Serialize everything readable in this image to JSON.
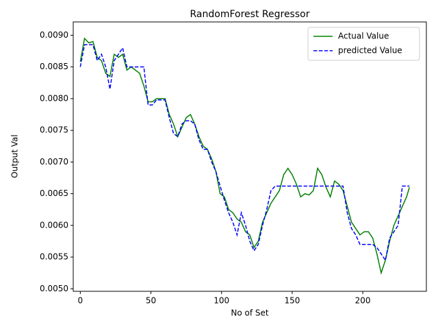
{
  "chart_data": {
    "type": "line",
    "title": "RandomForest Regressor",
    "x_label": "No of Set",
    "y_label": "Output Val",
    "x": [
      0,
      3,
      6,
      9,
      12,
      15,
      18,
      21,
      24,
      27,
      30,
      33,
      36,
      39,
      42,
      45,
      48,
      51,
      54,
      57,
      60,
      63,
      66,
      69,
      72,
      75,
      78,
      81,
      84,
      87,
      90,
      93,
      96,
      99,
      102,
      105,
      108,
      111,
      114,
      117,
      120,
      123,
      126,
      129,
      132,
      135,
      138,
      141,
      144,
      147,
      150,
      153,
      156,
      159,
      162,
      165,
      168,
      171,
      174,
      177,
      180,
      183,
      186,
      189,
      192,
      195,
      198,
      201,
      204,
      207,
      210,
      213,
      216,
      219,
      222,
      225,
      228,
      231,
      233
    ],
    "series": [
      {
        "name": "Actual Value",
        "color": "#008000",
        "dash": false,
        "values": [
          0.00858,
          0.00895,
          0.00888,
          0.0089,
          0.00865,
          0.0086,
          0.0084,
          0.00835,
          0.0087,
          0.00865,
          0.0087,
          0.00845,
          0.0085,
          0.00845,
          0.0084,
          0.0082,
          0.00795,
          0.00795,
          0.008,
          0.008,
          0.008,
          0.00775,
          0.0076,
          0.0074,
          0.00755,
          0.0077,
          0.00775,
          0.0076,
          0.0074,
          0.00725,
          0.0072,
          0.00705,
          0.00685,
          0.0065,
          0.00645,
          0.00625,
          0.0062,
          0.0061,
          0.00605,
          0.0059,
          0.00585,
          0.00565,
          0.00575,
          0.00605,
          0.0062,
          0.00635,
          0.00645,
          0.00655,
          0.0068,
          0.0069,
          0.0068,
          0.00665,
          0.00645,
          0.0065,
          0.00648,
          0.00655,
          0.0069,
          0.0068,
          0.0066,
          0.00645,
          0.0067,
          0.00665,
          0.00655,
          0.0063,
          0.00605,
          0.00595,
          0.00585,
          0.0059,
          0.0059,
          0.0058,
          0.00555,
          0.00525,
          0.00545,
          0.00575,
          0.006,
          0.00615,
          0.0063,
          0.00645,
          0.0066
        ]
      },
      {
        "name": "predicted Value",
        "color": "#0000ff",
        "dash": true,
        "values": [
          0.0085,
          0.00885,
          0.00885,
          0.00885,
          0.0086,
          0.0087,
          0.0085,
          0.00815,
          0.0086,
          0.0087,
          0.0088,
          0.0085,
          0.0085,
          0.0085,
          0.0085,
          0.0085,
          0.0079,
          0.0079,
          0.00798,
          0.00798,
          0.00798,
          0.0077,
          0.00745,
          0.0074,
          0.0076,
          0.00765,
          0.00765,
          0.0076,
          0.00735,
          0.0072,
          0.0072,
          0.007,
          0.00685,
          0.00662,
          0.0064,
          0.0062,
          0.00605,
          0.00585,
          0.0062,
          0.006,
          0.00575,
          0.0056,
          0.0057,
          0.006,
          0.00625,
          0.00655,
          0.00662,
          0.00662,
          0.00662,
          0.00662,
          0.00662,
          0.00662,
          0.00662,
          0.00662,
          0.00662,
          0.00662,
          0.00662,
          0.00662,
          0.00662,
          0.00662,
          0.00662,
          0.00662,
          0.00662,
          0.0062,
          0.00595,
          0.00585,
          0.0057,
          0.0057,
          0.0057,
          0.0057,
          0.00565,
          0.00555,
          0.00545,
          0.0058,
          0.0059,
          0.006,
          0.00662,
          0.00662,
          0.00662
        ]
      }
    ],
    "xlim": [
      -5,
      245
    ],
    "xticks": [
      0,
      50,
      100,
      150,
      200
    ],
    "ylim": [
      0.00496,
      0.00921
    ],
    "yticks": [
      {
        "value": 0.005,
        "label": "0.0050"
      },
      {
        "value": 0.0055,
        "label": "0.0055"
      },
      {
        "value": 0.006,
        "label": "0.0060"
      },
      {
        "value": 0.0065,
        "label": "0.0065"
      },
      {
        "value": 0.007,
        "label": "0.0070"
      },
      {
        "value": 0.0075,
        "label": "0.0075"
      },
      {
        "value": 0.008,
        "label": "0.0080"
      },
      {
        "value": 0.0085,
        "label": "0.0085"
      },
      {
        "value": 0.009,
        "label": "0.0090"
      }
    ],
    "legend": "upper right"
  }
}
